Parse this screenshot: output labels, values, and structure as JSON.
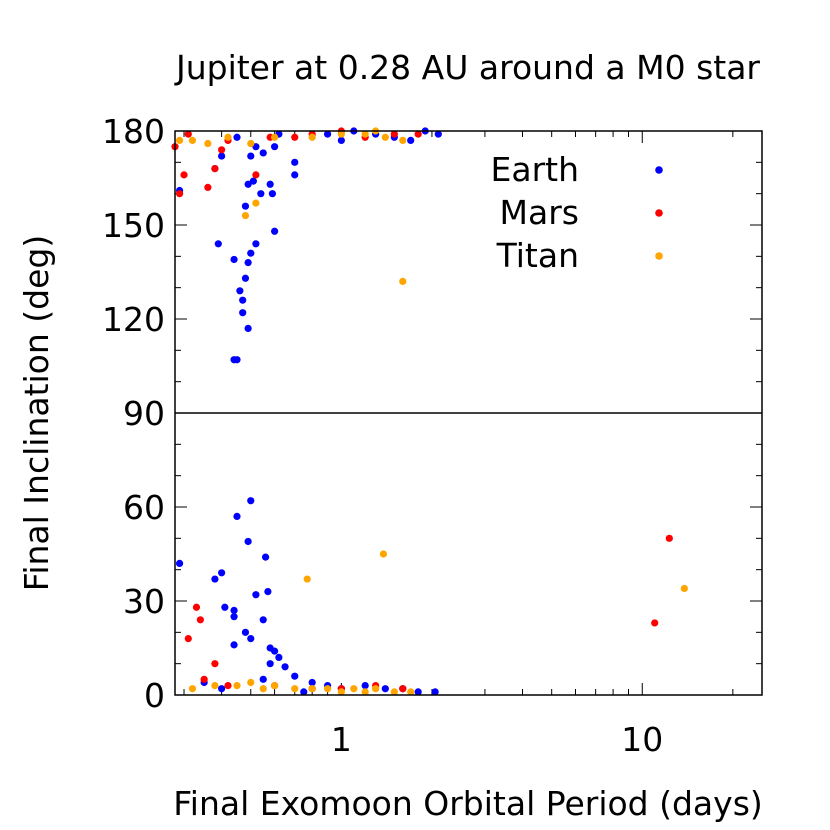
{
  "chart_data": {
    "type": "scatter",
    "title": "Jupiter at 0.28 AU around a M0 star",
    "xlabel": "Final Exomoon Orbital Period (days)",
    "ylabel": "Final Inclination (deg)",
    "xscale": "log",
    "xlim": [
      0.28,
      25
    ],
    "ylim": [
      0,
      180
    ],
    "x_ticks": [
      1,
      10
    ],
    "x_tick_labels": [
      "1",
      "10"
    ],
    "y_ticks": [
      0,
      30,
      60,
      90,
      120,
      150,
      180
    ],
    "y_tick_labels": [
      "0",
      "30",
      "60",
      "90",
      "120",
      "150",
      "180"
    ],
    "reference_line_y": 90,
    "legend_position": "top-right",
    "colors": {
      "Earth": "#0000ff",
      "Mars": "#ff0000",
      "Titan": "#ffa500"
    },
    "series": [
      {
        "name": "Earth",
        "points": [
          [
            0.29,
            161
          ],
          [
            0.39,
            144
          ],
          [
            0.44,
            107
          ],
          [
            0.45,
            107
          ],
          [
            0.44,
            139
          ],
          [
            0.47,
            126
          ],
          [
            0.48,
            133
          ],
          [
            0.49,
            117
          ],
          [
            0.49,
            138
          ],
          [
            0.5,
            141
          ],
          [
            0.52,
            144
          ],
          [
            0.46,
            129
          ],
          [
            0.47,
            122
          ],
          [
            0.6,
            148
          ],
          [
            0.48,
            156
          ],
          [
            0.49,
            163
          ],
          [
            0.51,
            164
          ],
          [
            0.54,
            160
          ],
          [
            0.58,
            163
          ],
          [
            0.59,
            160
          ],
          [
            0.7,
            166
          ],
          [
            0.38,
            168
          ],
          [
            0.4,
            172
          ],
          [
            0.5,
            172
          ],
          [
            0.52,
            175
          ],
          [
            0.55,
            173
          ],
          [
            0.6,
            175
          ],
          [
            0.7,
            170
          ],
          [
            0.45,
            178
          ],
          [
            0.62,
            179
          ],
          [
            0.9,
            179
          ],
          [
            1.1,
            180
          ],
          [
            1.3,
            179
          ],
          [
            1.5,
            178
          ],
          [
            1.7,
            177
          ],
          [
            2.1,
            179
          ],
          [
            1.9,
            180
          ],
          [
            1.0,
            177
          ],
          [
            0.29,
            42
          ],
          [
            0.38,
            37
          ],
          [
            0.4,
            39
          ],
          [
            0.41,
            28
          ],
          [
            0.44,
            27
          ],
          [
            0.44,
            25
          ],
          [
            0.45,
            57
          ],
          [
            0.49,
            49
          ],
          [
            0.5,
            62
          ],
          [
            0.52,
            32
          ],
          [
            0.48,
            20
          ],
          [
            0.5,
            18
          ],
          [
            0.56,
            44
          ],
          [
            0.57,
            33
          ],
          [
            0.44,
            16
          ],
          [
            0.55,
            24
          ],
          [
            0.58,
            15
          ],
          [
            0.6,
            14
          ],
          [
            0.58,
            10
          ],
          [
            0.62,
            12
          ],
          [
            0.65,
            9
          ],
          [
            0.7,
            6
          ],
          [
            0.8,
            4
          ],
          [
            0.9,
            3
          ],
          [
            1.0,
            2
          ],
          [
            1.2,
            3
          ],
          [
            1.4,
            2
          ],
          [
            1.6,
            2
          ],
          [
            1.8,
            1
          ],
          [
            2.05,
            1
          ],
          [
            0.35,
            4
          ],
          [
            0.4,
            2
          ],
          [
            0.55,
            5
          ],
          [
            0.75,
            1
          ]
        ]
      },
      {
        "name": "Mars",
        "points": [
          [
            0.28,
            175
          ],
          [
            0.29,
            160
          ],
          [
            0.3,
            166
          ],
          [
            0.31,
            179
          ],
          [
            0.36,
            162
          ],
          [
            0.38,
            168
          ],
          [
            0.4,
            174
          ],
          [
            0.42,
            177
          ],
          [
            0.52,
            166
          ],
          [
            0.58,
            178
          ],
          [
            0.8,
            179
          ],
          [
            1.0,
            180
          ],
          [
            1.2,
            178
          ],
          [
            1.5,
            179
          ],
          [
            1.8,
            179
          ],
          [
            0.7,
            178
          ],
          [
            0.31,
            18
          ],
          [
            0.33,
            28
          ],
          [
            0.34,
            24
          ],
          [
            0.38,
            10
          ],
          [
            0.35,
            5
          ],
          [
            0.42,
            3
          ],
          [
            0.6,
            3
          ],
          [
            0.8,
            2
          ],
          [
            1.0,
            2
          ],
          [
            1.3,
            3
          ],
          [
            1.6,
            2
          ],
          [
            11,
            23
          ],
          [
            12.3,
            50
          ]
        ]
      },
      {
        "name": "Titan",
        "points": [
          [
            0.29,
            177
          ],
          [
            0.32,
            177
          ],
          [
            0.36,
            176
          ],
          [
            0.42,
            178
          ],
          [
            0.48,
            153
          ],
          [
            0.52,
            157
          ],
          [
            0.5,
            176
          ],
          [
            0.6,
            178
          ],
          [
            0.8,
            178
          ],
          [
            1.0,
            179
          ],
          [
            1.2,
            179
          ],
          [
            1.4,
            178
          ],
          [
            1.6,
            177
          ],
          [
            1.3,
            180
          ],
          [
            1.6,
            132
          ],
          [
            0.32,
            2
          ],
          [
            0.38,
            3
          ],
          [
            0.45,
            3
          ],
          [
            0.5,
            4
          ],
          [
            0.55,
            2
          ],
          [
            0.6,
            3
          ],
          [
            0.7,
            2
          ],
          [
            0.8,
            2
          ],
          [
            0.9,
            2
          ],
          [
            1.0,
            1
          ],
          [
            1.1,
            2
          ],
          [
            1.2,
            1
          ],
          [
            1.3,
            2
          ],
          [
            1.5,
            1
          ],
          [
            1.7,
            1
          ],
          [
            0.77,
            37
          ],
          [
            1.38,
            45
          ],
          [
            13.8,
            34
          ]
        ]
      }
    ]
  }
}
